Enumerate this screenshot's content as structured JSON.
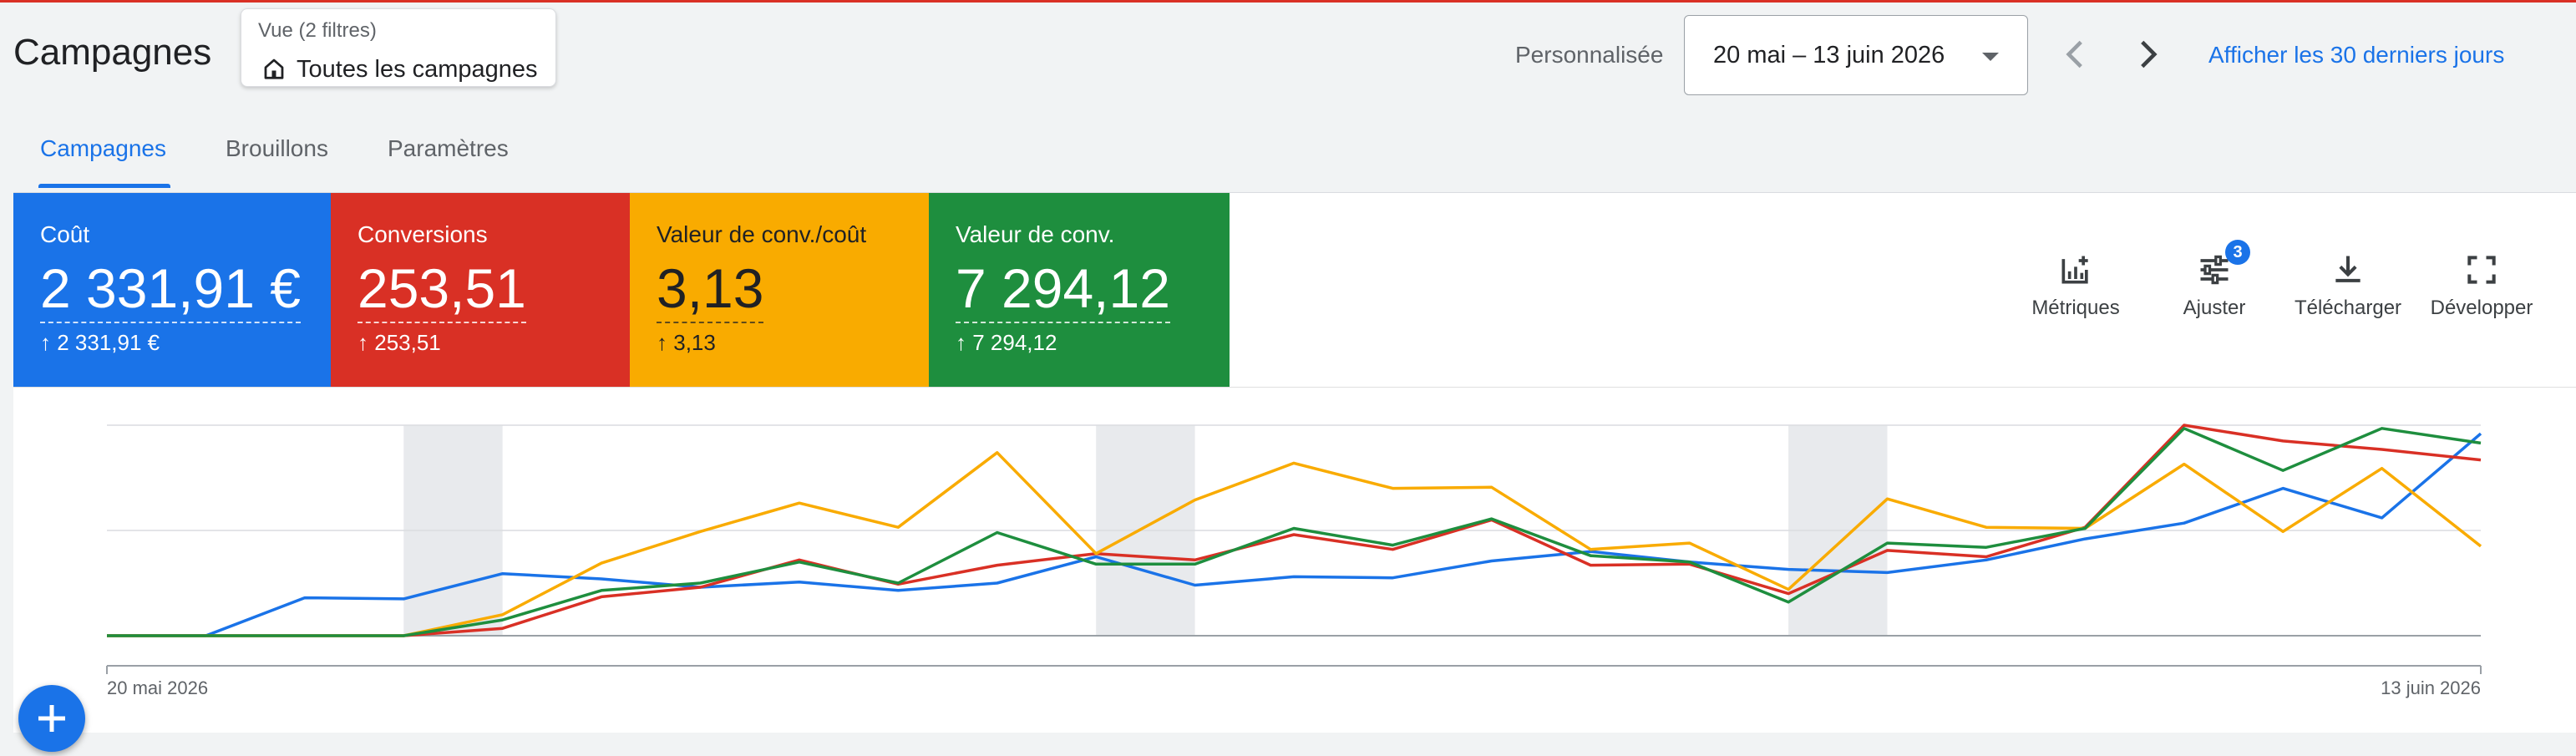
{
  "header": {
    "title": "Campagnes",
    "view": {
      "label": "Vue (2 filtres)",
      "value": "Toutes les campagnes"
    },
    "range_label": "Personnalisée",
    "date_range": "20 mai – 13 juin 2026",
    "last_30_days": "Afficher les 30 derniers jours"
  },
  "tabs": [
    {
      "label": "Campagnes",
      "active": true
    },
    {
      "label": "Brouillons",
      "active": false
    },
    {
      "label": "Paramètres",
      "active": false
    }
  ],
  "scorecards": [
    {
      "label": "Coût",
      "value": "2 331,91 €",
      "delta": "2 331,91 €",
      "color": "#1a73e8"
    },
    {
      "label": "Conversions",
      "value": "253,51",
      "delta": "253,51",
      "color": "#d93025"
    },
    {
      "label": "Valeur de conv./coût",
      "value": "3,13",
      "delta": "3,13",
      "color": "#f9ab00"
    },
    {
      "label": "Valeur de conv.",
      "value": "7 294,12",
      "delta": "7 294,12",
      "color": "#1e8e3e"
    }
  ],
  "toolbar": {
    "metrics": "Métriques",
    "adjust": "Ajuster",
    "adjust_badge": "3",
    "download": "Télécharger",
    "expand": "Développer"
  },
  "chart_data": {
    "type": "line",
    "x_start_label": "20 mai 2026",
    "x_end_label": "13 juin 2026",
    "x": [
      "2026-05-20",
      "2026-05-21",
      "2026-05-22",
      "2026-05-23",
      "2026-05-24",
      "2026-05-25",
      "2026-05-26",
      "2026-05-27",
      "2026-05-28",
      "2026-05-29",
      "2026-05-30",
      "2026-05-31",
      "2026-06-01",
      "2026-06-02",
      "2026-06-03",
      "2026-06-04",
      "2026-06-05",
      "2026-06-06",
      "2026-06-07",
      "2026-06-08",
      "2026-06-09",
      "2026-06-10",
      "2026-06-11",
      "2026-06-12",
      "2026-06-13"
    ],
    "ylim": [
      0,
      2
    ],
    "grid": true,
    "weekend_bands": [
      [
        "2026-05-23",
        "2026-05-24"
      ],
      [
        "2026-05-30",
        "2026-05-31"
      ],
      [
        "2026-06-06",
        "2026-06-07"
      ]
    ],
    "series": [
      {
        "color": "#1a73e8",
        "values": [
          0,
          0,
          0.36,
          0.35,
          0.59,
          0.54,
          0.46,
          0.51,
          0.43,
          0.5,
          0.75,
          0.48,
          0.56,
          0.55,
          0.71,
          0.8,
          0.7,
          0.63,
          0.6,
          0.72,
          0.92,
          1.07,
          1.4,
          1.12,
          1.92
        ]
      },
      {
        "color": "#d93025",
        "values": [
          0,
          0,
          0,
          0,
          0.07,
          0.37,
          0.46,
          0.72,
          0.49,
          0.67,
          0.78,
          0.72,
          0.96,
          0.82,
          1.1,
          0.67,
          0.68,
          0.4,
          0.81,
          0.75,
          1.03,
          2.0,
          1.85,
          1.77,
          1.67
        ]
      },
      {
        "color": "#f9ab00",
        "values": [
          0,
          0,
          0,
          0,
          0.2,
          0.69,
          0.99,
          1.26,
          1.03,
          1.74,
          0.78,
          1.29,
          1.64,
          1.4,
          1.41,
          0.82,
          0.88,
          0.44,
          1.3,
          1.03,
          1.02,
          1.63,
          0.99,
          1.59,
          0.85
        ]
      },
      {
        "color": "#1e8e3e",
        "values": [
          0,
          0,
          0,
          0,
          0.15,
          0.43,
          0.5,
          0.7,
          0.5,
          0.98,
          0.68,
          0.68,
          1.02,
          0.86,
          1.11,
          0.76,
          0.7,
          0.32,
          0.88,
          0.84,
          1.02,
          1.97,
          1.57,
          1.97,
          1.83
        ]
      }
    ]
  }
}
